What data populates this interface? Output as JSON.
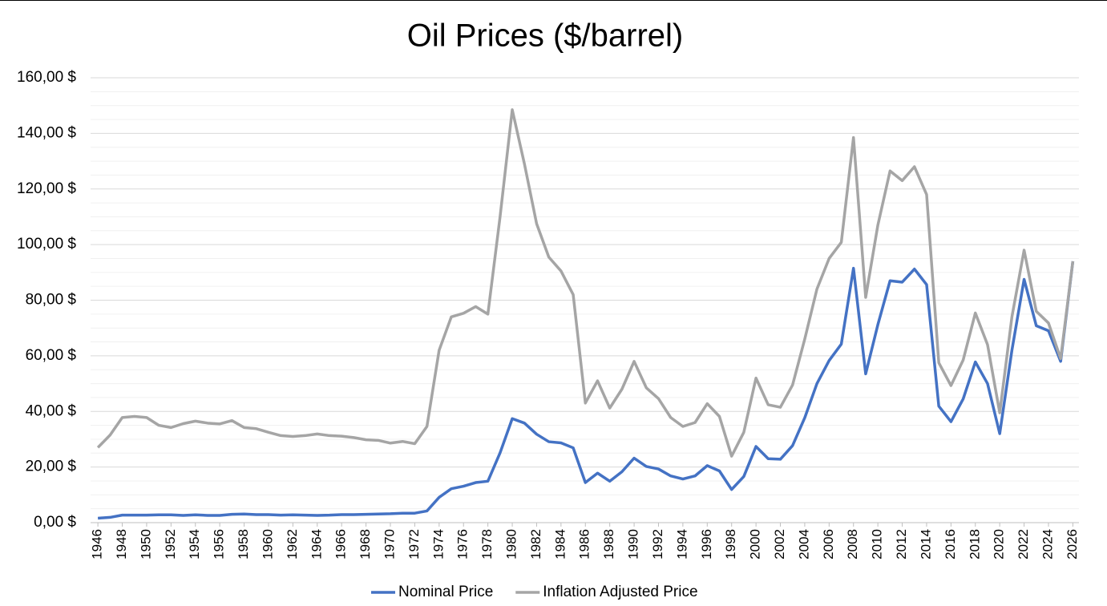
{
  "chart_data": {
    "type": "line",
    "title": "Oil Prices ($/barrel)",
    "x": [
      1946,
      1947,
      1948,
      1949,
      1950,
      1951,
      1952,
      1953,
      1954,
      1955,
      1956,
      1957,
      1958,
      1959,
      1960,
      1961,
      1962,
      1963,
      1964,
      1965,
      1966,
      1967,
      1968,
      1969,
      1970,
      1971,
      1972,
      1973,
      1974,
      1975,
      1976,
      1977,
      1978,
      1979,
      1980,
      1981,
      1982,
      1983,
      1984,
      1985,
      1986,
      1987,
      1988,
      1989,
      1990,
      1991,
      1992,
      1993,
      1994,
      1995,
      1996,
      1997,
      1998,
      1999,
      2000,
      2001,
      2002,
      2003,
      2004,
      2005,
      2006,
      2007,
      2008,
      2009,
      2010,
      2011,
      2012,
      2013,
      2014,
      2015,
      2016,
      2017,
      2018,
      2019,
      2020,
      2021,
      2022,
      2023,
      2024,
      2025,
      2026
    ],
    "series": [
      {
        "name": "Nominal Price",
        "color": "#4472c4",
        "values": [
          1.6,
          1.9,
          2.7,
          2.7,
          2.7,
          2.8,
          2.8,
          2.6,
          2.8,
          2.6,
          2.6,
          3.0,
          3.1,
          2.9,
          2.9,
          2.7,
          2.8,
          2.7,
          2.6,
          2.7,
          2.9,
          2.9,
          3.0,
          3.1,
          3.2,
          3.4,
          3.4,
          4.2,
          9.1,
          12.2,
          13.1,
          14.4,
          14.9,
          25.1,
          37.4,
          35.8,
          31.8,
          29.1,
          28.7,
          26.9,
          14.4,
          17.8,
          14.9,
          18.3,
          23.2,
          20.2,
          19.3,
          16.8,
          15.7,
          16.8,
          20.5,
          18.6,
          11.9,
          16.6,
          27.4,
          23.0,
          22.8,
          27.7,
          37.7,
          50.0,
          58.3,
          64.2,
          91.5,
          53.5,
          71.2,
          87.0,
          86.5,
          91.2,
          85.6,
          41.9,
          36.3,
          44.5,
          57.8,
          50.0,
          32.0,
          62.0,
          87.5,
          70.8,
          69.0,
          58.0,
          94.0
        ]
      },
      {
        "name": "Inflation Adjusted Price",
        "color": "#a5a5a5",
        "values": [
          27,
          31.5,
          37.8,
          38.2,
          37.8,
          35,
          34.2,
          35.6,
          36.5,
          35.8,
          35.5,
          36.7,
          34.2,
          33.8,
          32.5,
          31.3,
          31,
          31.3,
          31.9,
          31.3,
          31.1,
          30.6,
          29.8,
          29.6,
          28.6,
          29.2,
          28.4,
          34.6,
          62,
          74,
          75.3,
          77.7,
          75,
          110,
          148.5,
          129,
          107.5,
          95.5,
          90.5,
          82,
          43,
          51,
          41.2,
          48,
          58,
          48.5,
          44.6,
          37.8,
          34.6,
          36,
          42.8,
          38.2,
          23.9,
          32.5,
          52,
          42.4,
          41.5,
          49.5,
          66,
          84,
          95,
          100.8,
          138.5,
          81,
          107,
          126.5,
          123,
          128,
          118,
          57.5,
          49.3,
          58.5,
          75.4,
          64,
          39.5,
          74,
          98,
          76,
          71.8,
          59,
          94
        ]
      }
    ],
    "xlim": [
      1945.4,
      2026.5
    ],
    "xticks": [
      1946,
      1948,
      1950,
      1952,
      1954,
      1956,
      1958,
      1960,
      1962,
      1964,
      1966,
      1968,
      1970,
      1972,
      1974,
      1976,
      1978,
      1980,
      1982,
      1984,
      1986,
      1988,
      1990,
      1992,
      1994,
      1996,
      1998,
      2000,
      2002,
      2004,
      2006,
      2008,
      2010,
      2012,
      2014,
      2016,
      2018,
      2020,
      2022,
      2024,
      2026
    ],
    "ylim": [
      0,
      160
    ],
    "yticks": [
      {
        "value": 0,
        "label": "0,00 $"
      },
      {
        "value": 20,
        "label": "20,00 $"
      },
      {
        "value": 40,
        "label": "40,00 $"
      },
      {
        "value": 60,
        "label": "60,00 $"
      },
      {
        "value": 80,
        "label": "80,00 $"
      },
      {
        "value": 100,
        "label": "100,00 $"
      },
      {
        "value": 120,
        "label": "120,00 $"
      },
      {
        "value": 140,
        "label": "140,00 $"
      },
      {
        "value": 160,
        "label": "160,00 $"
      }
    ],
    "grid": true,
    "minor_grid_divisions": 4,
    "legend": "bottom"
  }
}
